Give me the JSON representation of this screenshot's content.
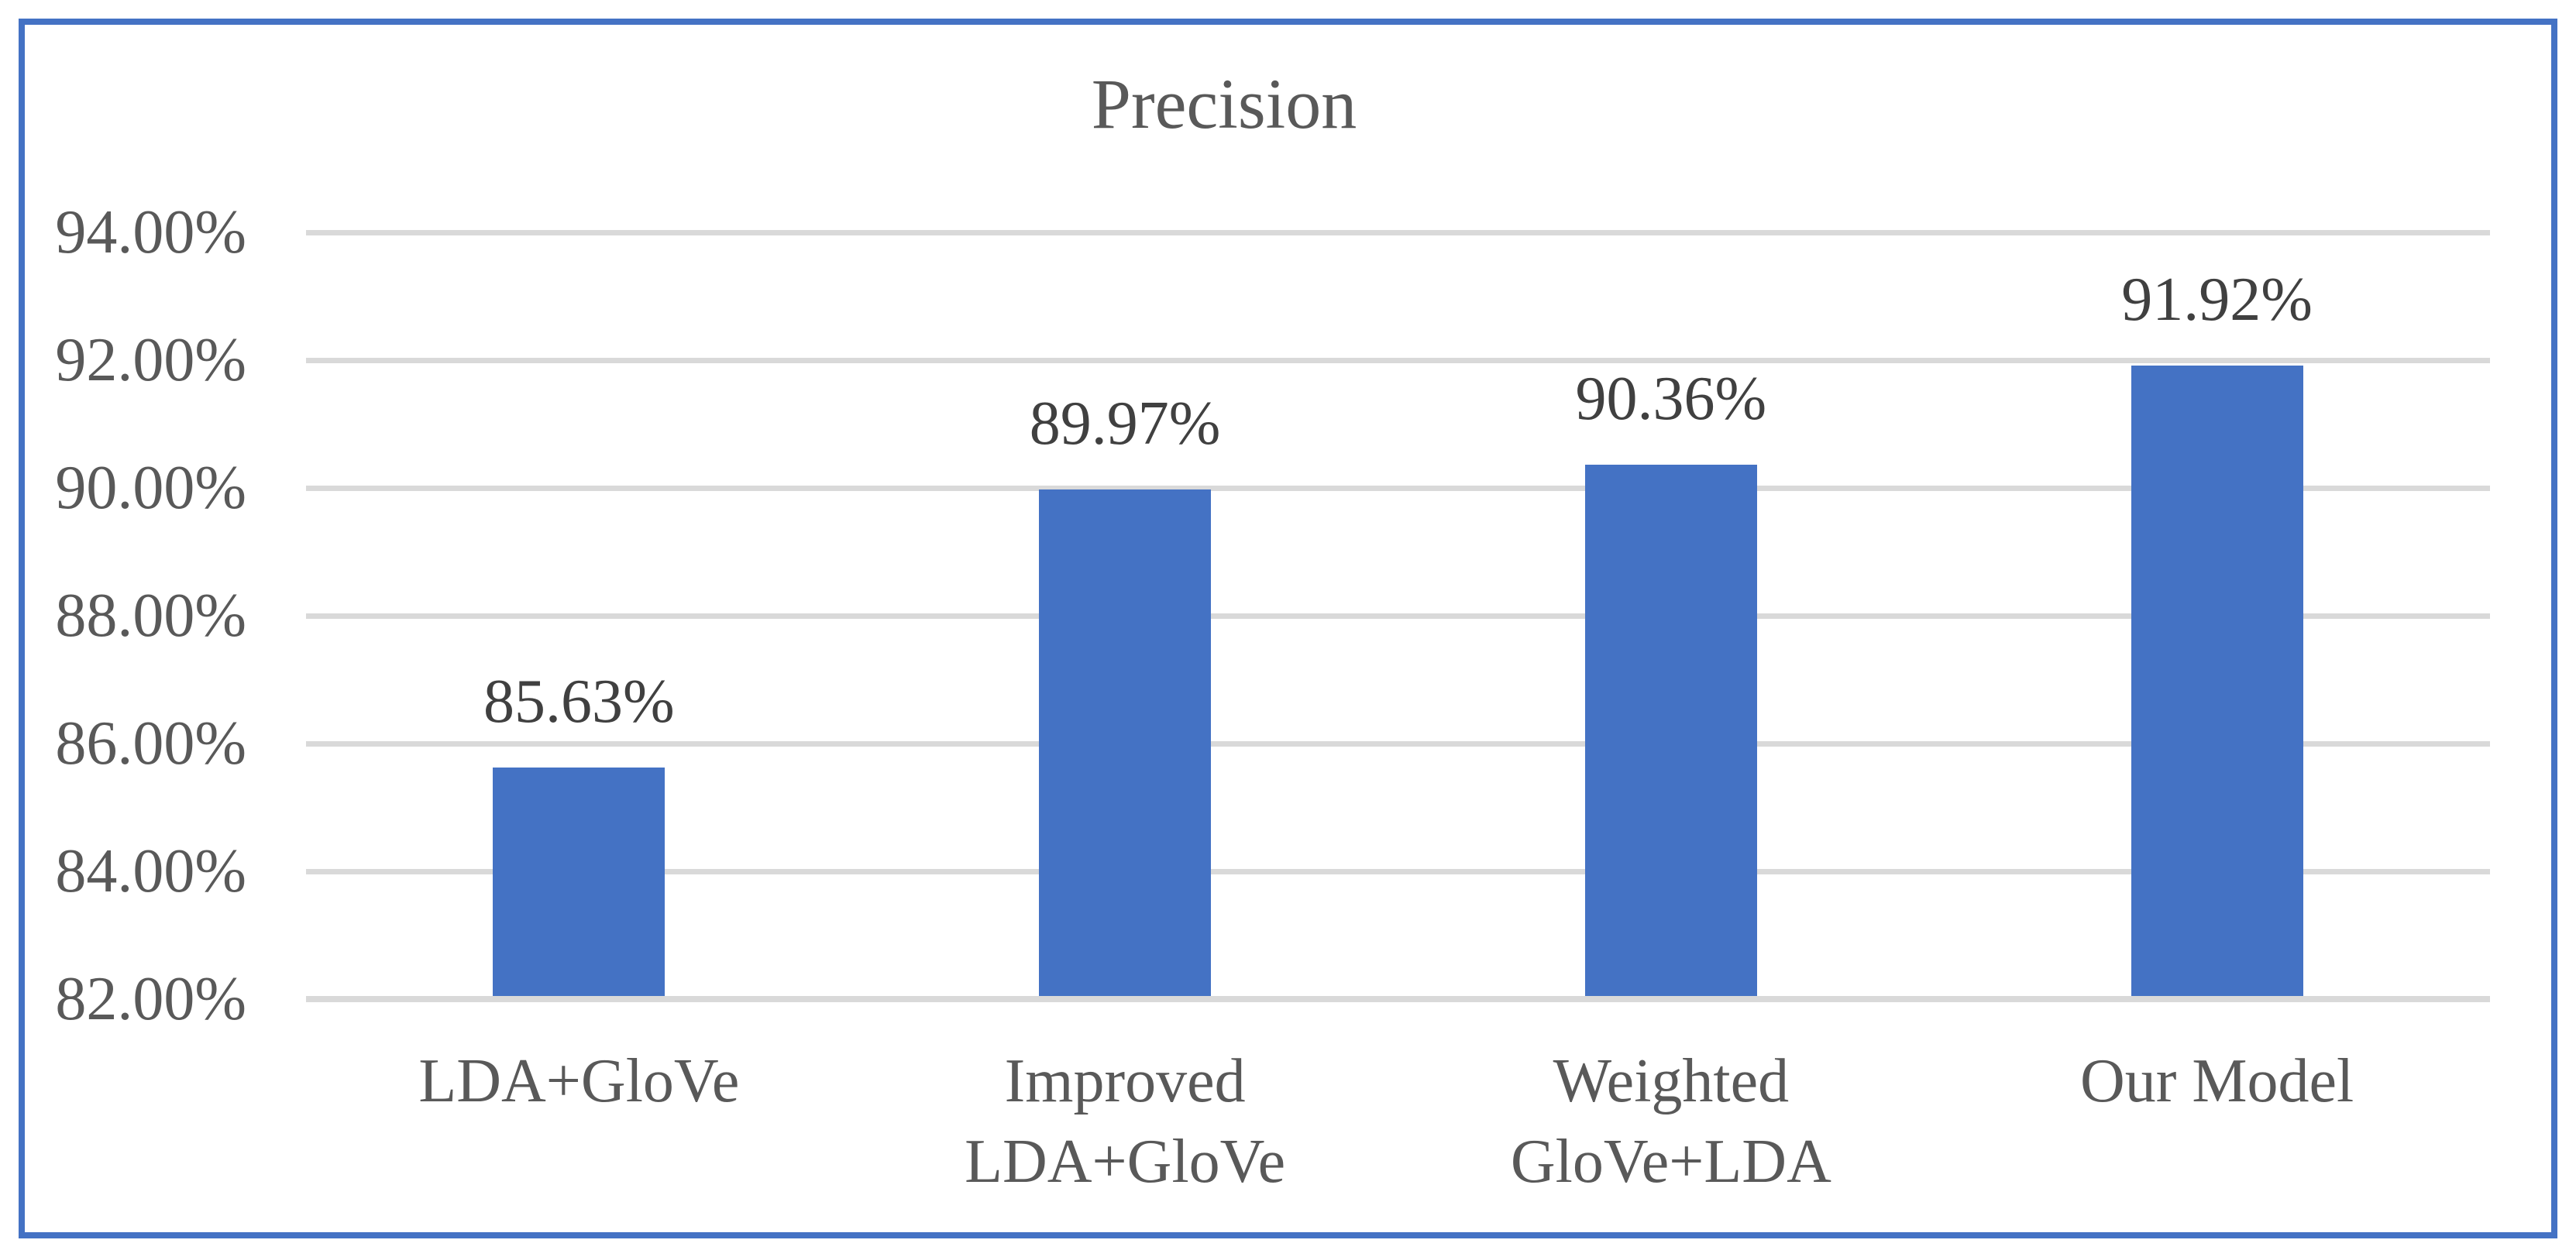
{
  "chart_data": {
    "type": "bar",
    "title": "Precision",
    "categories": [
      "LDA+GloVe",
      "Improved\nLDA+GloVe",
      "Weighted\nGloVe+LDA",
      "Our Model"
    ],
    "values": [
      85.63,
      89.97,
      90.36,
      91.92
    ],
    "data_labels": [
      "85.63%",
      "89.97%",
      "90.36%",
      "91.92%"
    ],
    "y_ticks": [
      "94.00%",
      "92.00%",
      "90.00%",
      "88.00%",
      "86.00%",
      "84.00%",
      "82.00%"
    ],
    "y_tick_values": [
      94,
      92,
      90,
      88,
      86,
      84,
      82
    ],
    "ylim": [
      82,
      94
    ],
    "xlabel": "",
    "ylabel": "",
    "grid": true,
    "legend": false,
    "colors": {
      "bar": "#4472C4",
      "frame_border": "#4472C4",
      "gridline": "#D9D9D9",
      "axis_line": "#D9D9D9",
      "title_text": "#595959",
      "tick_text": "#595959",
      "data_label_text": "#404040",
      "background": "#FFFFFF"
    }
  }
}
